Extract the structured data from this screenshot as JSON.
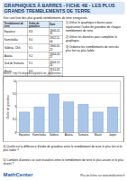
{
  "header": {
    "title": "GRAPHIQUES À BARRES - FICHE 4B - LES PLUS GRANDS TREMBLEMENTS DE TERRE"
  },
  "intro": "Voici une liste des plus grands tremblements de terre enregistrés.",
  "table": {
    "header": [
      "Tremblement de terre",
      "Ordre de grandeur",
      "Date"
    ],
    "rows": [
      [
        "Equateur",
        "8.8",
        "1906-01-31"
      ],
      [
        "Kamchatka",
        "9.0",
        "1952-11-04"
      ],
      [
        "Valdivia, Chili",
        "9.5",
        "1960-05-22"
      ],
      [
        "Alaska",
        "9.2",
        "1964-03-27"
      ],
      [
        "Sud de Sumatra",
        "9.1",
        "2004-12-26"
      ],
      [
        "Maule",
        "8.8",
        "2010-02-27"
      ],
      [
        "Japon",
        "9.0",
        "2011-03-11"
      ]
    ]
  },
  "instructions": [
    "1) Utilise le graphique à barres pour représenter l'ordre de grandeur de chaque tremblement de terre.",
    "2) Utilise les données pour compléter le graphique.",
    "3) Ordonne les tremblements de terre du plus fort au plus faible."
  ],
  "source": "Source : http://fr.wikipedia.org/wiki/Liste_de_séismes",
  "chart_data": {
    "type": "bar",
    "categories": [
      "Equateur",
      "Kamchatka",
      "Valdivia",
      "Alaska",
      "Sumatra",
      "Maule",
      "Japon"
    ],
    "values": [
      8.8,
      9.0,
      9.5,
      9.2,
      9.1,
      8.8,
      9.0
    ],
    "color": "#a9c6e8",
    "y_label": "Ordre de grandeur",
    "ylim": [
      8,
      10
    ],
    "yticks": [
      8,
      8.5,
      9,
      9.5,
      10
    ],
    "grid": true
  },
  "questions": [
    "4) Quelle est la différence d'ordre de grandeur entre le tremblement de terre le plus fort et le plus faible ?",
    "5) Combien d'années se sont écoulées entre le tremblement de terre le plus ancien et le plus récent ?"
  ],
  "footer": {
    "logo": "MathCenter",
    "text": "Plus de fiches sur www.mathcenter.fr"
  }
}
